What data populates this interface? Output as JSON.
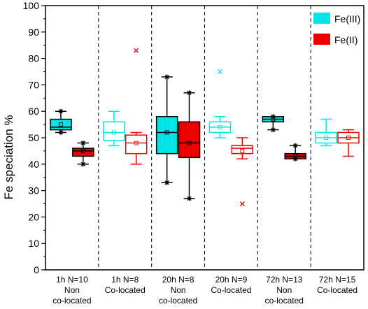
{
  "chart_data": {
    "type": "box",
    "ylabel": "Fe speciation %",
    "ylim": [
      0,
      100
    ],
    "yticks": [
      0,
      10,
      20,
      30,
      40,
      50,
      60,
      70,
      80,
      90,
      100
    ],
    "legend": {
      "placement": "top-right",
      "entries": [
        "Fe(III)",
        "Fe(II)"
      ]
    },
    "groups": [
      {
        "label_lines": [
          "1h N=10",
          "Non",
          "co-located"
        ],
        "style": "filled"
      },
      {
        "label_lines": [
          "1h N=8",
          "Co-located"
        ],
        "style": "hollow"
      },
      {
        "label_lines": [
          "20h N=8",
          "Non",
          "co-located"
        ],
        "style": "filled"
      },
      {
        "label_lines": [
          "20h N=9",
          "Co-located"
        ],
        "style": "hollow"
      },
      {
        "label_lines": [
          "72h N=13",
          "Non",
          "co-located"
        ],
        "style": "filled"
      },
      {
        "label_lines": [
          "72h N=15",
          "Co-located"
        ],
        "style": "hollow"
      }
    ],
    "series": [
      {
        "name": "Fe(III)",
        "color": "#00e5e5",
        "boxes": [
          {
            "min": 52,
            "q1": 53,
            "median": 54,
            "q3": 57,
            "max": 60,
            "mean": 55,
            "outliers": []
          },
          {
            "min": 47,
            "q1": 49,
            "median": 52,
            "q3": 56,
            "max": 60,
            "mean": 52,
            "outliers": []
          },
          {
            "min": 33,
            "q1": 44,
            "median": 52,
            "q3": 58,
            "max": 73,
            "mean": 52,
            "outliers": []
          },
          {
            "min": 50,
            "q1": 52,
            "median": 54,
            "q3": 56,
            "max": 58,
            "mean": 54,
            "outliers": [
              75
            ]
          },
          {
            "min": 53,
            "q1": 56,
            "median": 57,
            "q3": 58,
            "max": 58,
            "mean": 57,
            "outliers": []
          },
          {
            "min": 47,
            "q1": 48,
            "median": 50,
            "q3": 52,
            "max": 57,
            "mean": 50,
            "outliers": []
          }
        ]
      },
      {
        "name": "Fe(II)",
        "color": "#ee0000",
        "boxes": [
          {
            "min": 40,
            "q1": 43,
            "median": 45,
            "q3": 46,
            "max": 48,
            "mean": 45,
            "outliers": []
          },
          {
            "min": 40,
            "q1": 44,
            "median": 48,
            "q3": 51,
            "max": 52,
            "mean": 48,
            "outliers": [
              83
            ]
          },
          {
            "min": 27,
            "q1": 42.5,
            "median": 48,
            "q3": 56,
            "max": 67,
            "mean": 48,
            "outliers": []
          },
          {
            "min": 42,
            "q1": 44,
            "median": 46,
            "q3": 47,
            "max": 50,
            "mean": 45,
            "outliers": [
              25
            ]
          },
          {
            "min": 42,
            "q1": 42,
            "median": 43,
            "q3": 44,
            "max": 47,
            "mean": 43,
            "outliers": []
          },
          {
            "min": 43,
            "q1": 48,
            "median": 50,
            "q3": 52,
            "max": 53,
            "mean": 50,
            "outliers": []
          }
        ]
      }
    ]
  }
}
